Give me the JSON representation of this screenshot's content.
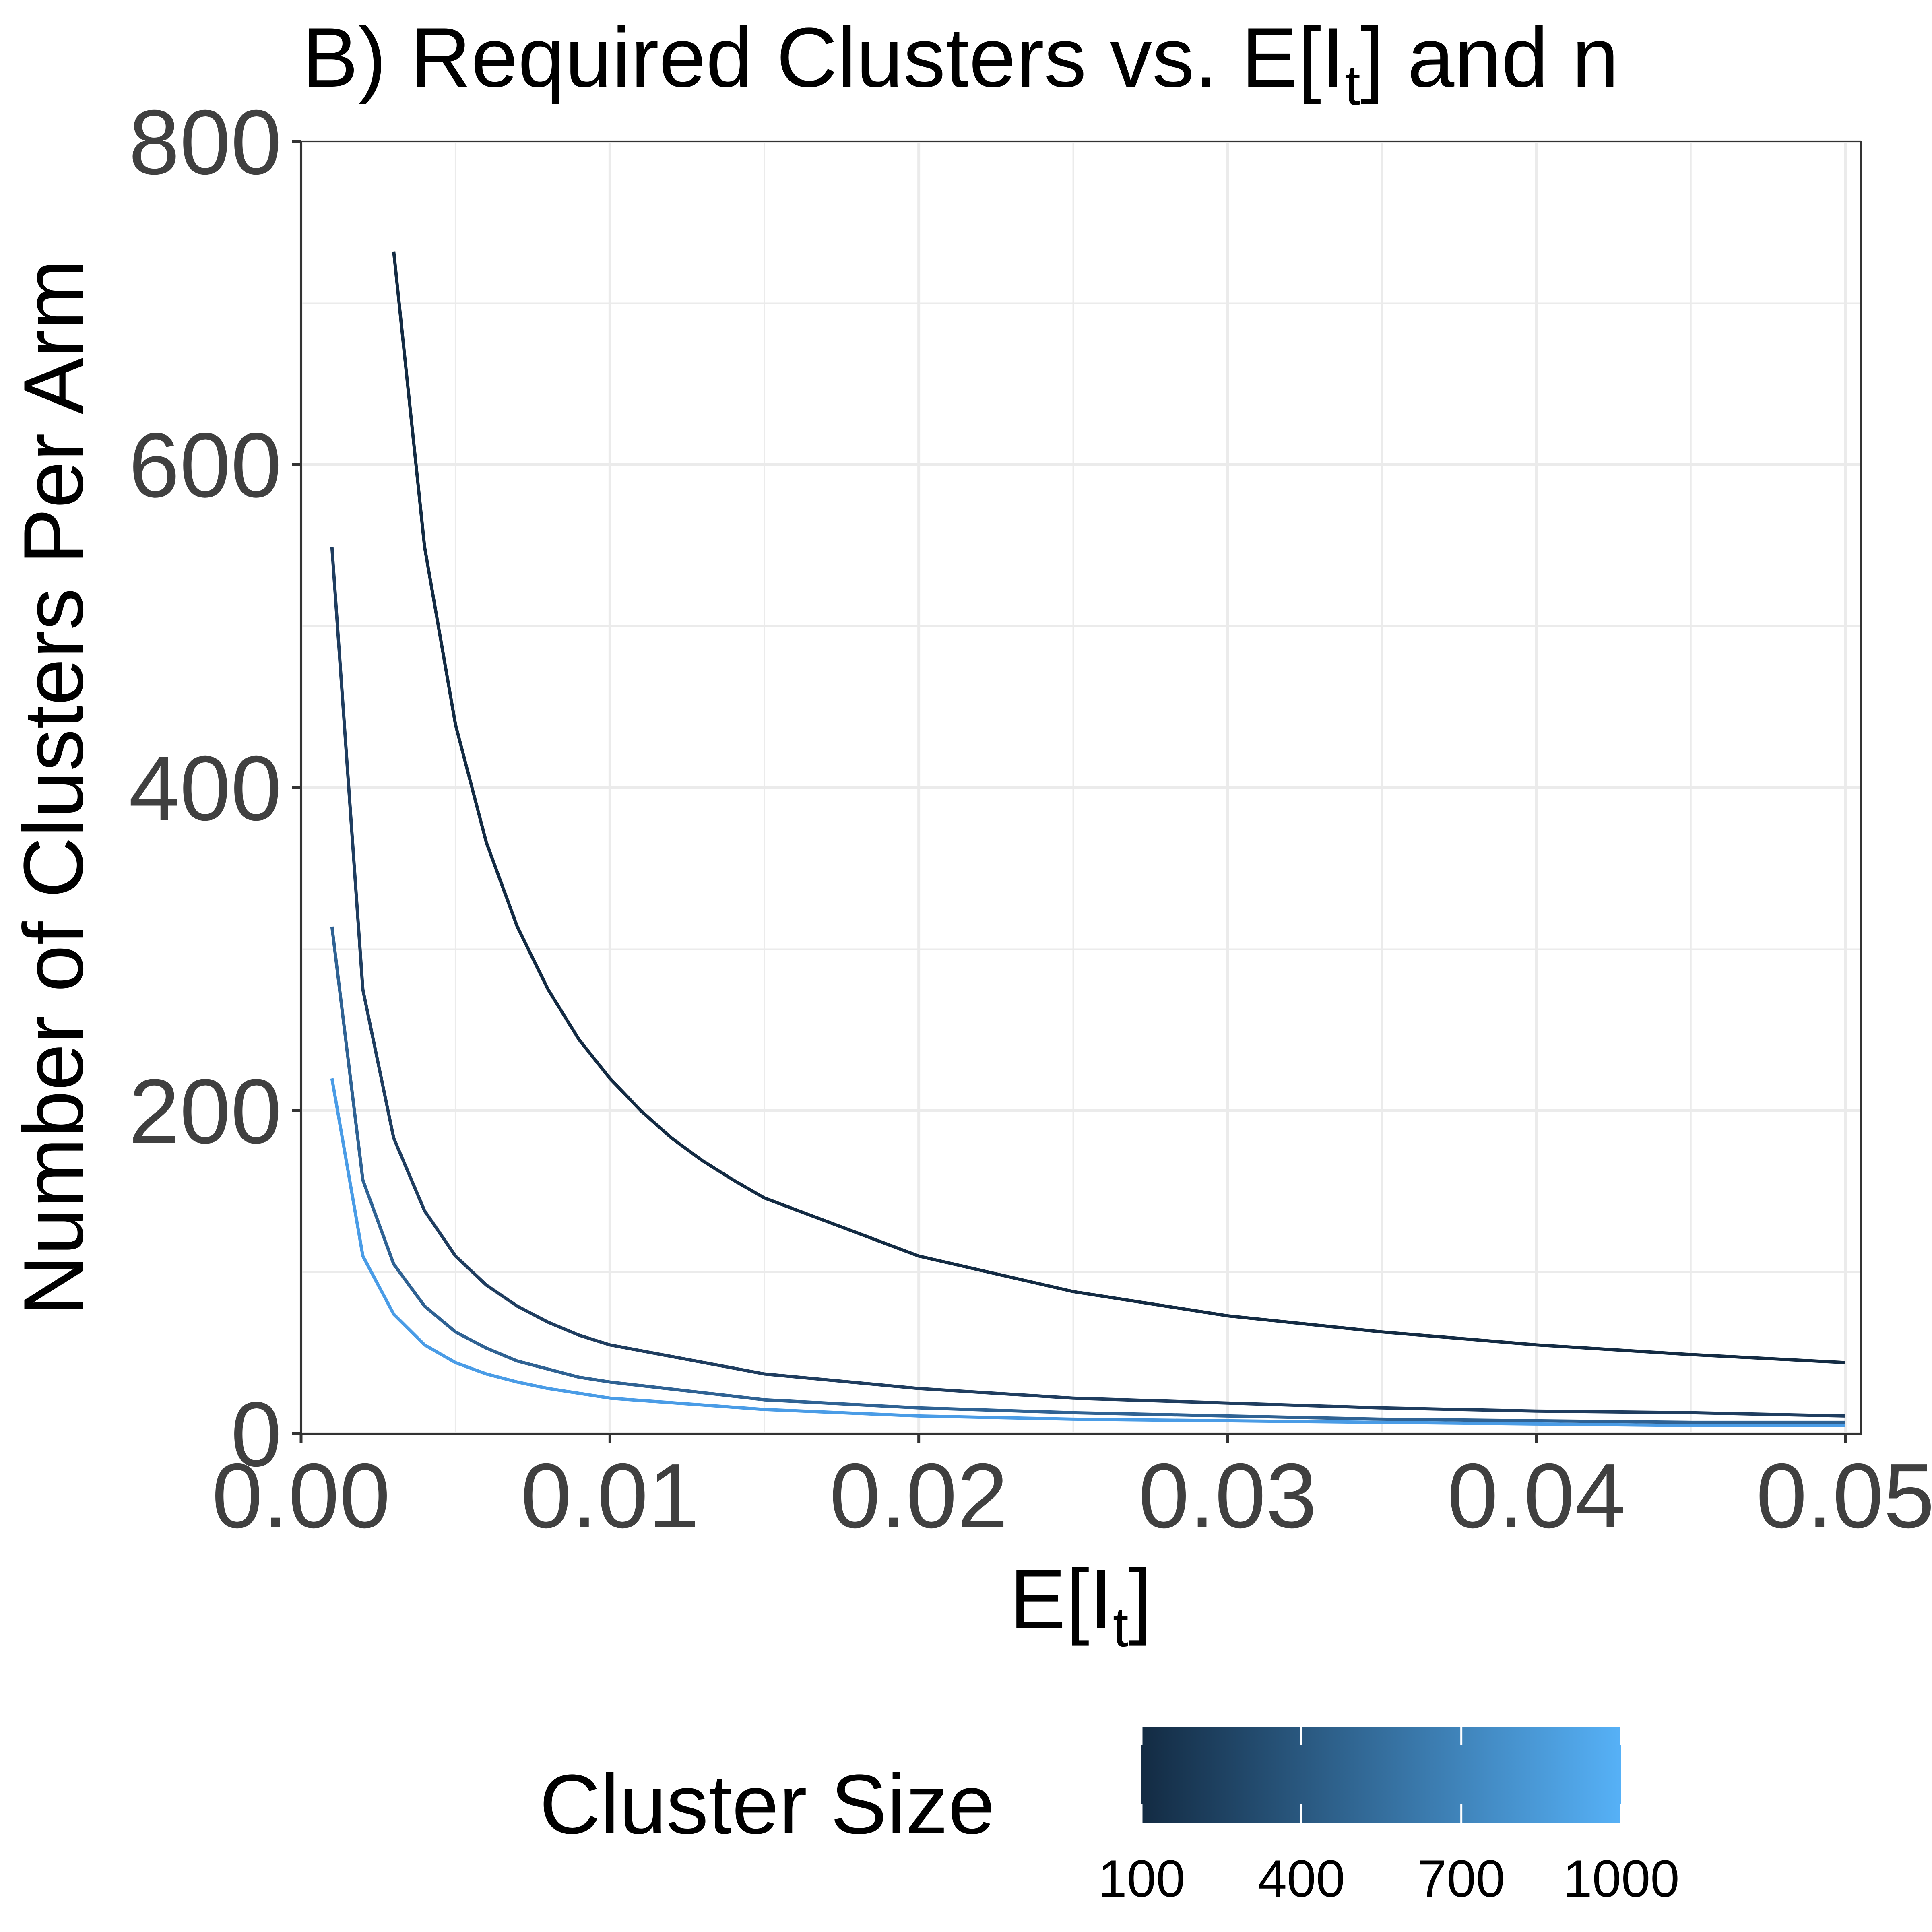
{
  "chart_data": {
    "type": "line",
    "title": "B) Required Clusters vs. E[I",
    "title_sub": "t",
    "title_suffix": "] and n",
    "xlabel": "E[I",
    "xlabel_sub": "t",
    "xlabel_suffix": "]",
    "ylabel": "Number of Clusters Per Arm",
    "xlim": [
      0,
      0.0505
    ],
    "ylim": [
      0,
      800
    ],
    "x_ticks": [
      0,
      0.01,
      0.02,
      0.03,
      0.04,
      0.05
    ],
    "x_tick_labels": [
      "0.00",
      "0.01",
      "0.02",
      "0.03",
      "0.04",
      "0.05"
    ],
    "y_ticks": [
      0,
      200,
      400,
      600,
      800
    ],
    "y_tick_labels": [
      "0",
      "200",
      "400",
      "600",
      "800"
    ],
    "grid": true,
    "legend": {
      "title": "Cluster Size",
      "position": "bottom",
      "type": "colorbar",
      "min": 100,
      "max": 1000,
      "ticks": [
        100,
        400,
        700,
        1000
      ],
      "tick_labels": [
        "100",
        "400",
        "700",
        "1000"
      ],
      "color_low": "#132B43",
      "color_high": "#56B1F7"
    },
    "series": [
      {
        "cluster_size": 100,
        "color": "#132B43",
        "x": [
          0.003,
          0.004,
          0.005,
          0.006,
          0.007,
          0.008,
          0.009,
          0.01,
          0.011,
          0.012,
          0.013,
          0.014,
          0.015,
          0.02,
          0.025,
          0.03,
          0.035,
          0.04,
          0.045,
          0.05
        ],
        "y": [
          732,
          549,
          439,
          366,
          314,
          275,
          244,
          220,
          200,
          183,
          169,
          157,
          146,
          110,
          88,
          73,
          63,
          55,
          49,
          44
        ]
      },
      {
        "cluster_size": 400,
        "color": "#1F3D5F",
        "x": [
          0.001,
          0.002,
          0.003,
          0.004,
          0.005,
          0.006,
          0.007,
          0.008,
          0.009,
          0.01,
          0.015,
          0.02,
          0.025,
          0.03,
          0.035,
          0.04,
          0.045,
          0.05
        ],
        "y": [
          549,
          275,
          183,
          138,
          110,
          92,
          79,
          69,
          61,
          55,
          37,
          28,
          22,
          19,
          16,
          14,
          13,
          11
        ]
      },
      {
        "cluster_size": 700,
        "color": "#2F6293",
        "x": [
          0.001,
          0.002,
          0.003,
          0.004,
          0.005,
          0.006,
          0.007,
          0.008,
          0.009,
          0.01,
          0.015,
          0.02,
          0.025,
          0.03,
          0.035,
          0.04,
          0.045,
          0.05
        ],
        "y": [
          314,
          157,
          105,
          79,
          63,
          53,
          45,
          40,
          35,
          32,
          21,
          16,
          13,
          11,
          9,
          8,
          7,
          7
        ]
      },
      {
        "cluster_size": 1000,
        "color": "#4A9CE6",
        "x": [
          0.001,
          0.002,
          0.003,
          0.004,
          0.005,
          0.006,
          0.007,
          0.008,
          0.009,
          0.01,
          0.015,
          0.02,
          0.025,
          0.03,
          0.035,
          0.04,
          0.045,
          0.05
        ],
        "y": [
          220,
          110,
          74,
          55,
          44,
          37,
          32,
          28,
          25,
          22,
          15,
          11,
          9,
          8,
          7,
          6,
          5,
          5
        ]
      }
    ]
  }
}
